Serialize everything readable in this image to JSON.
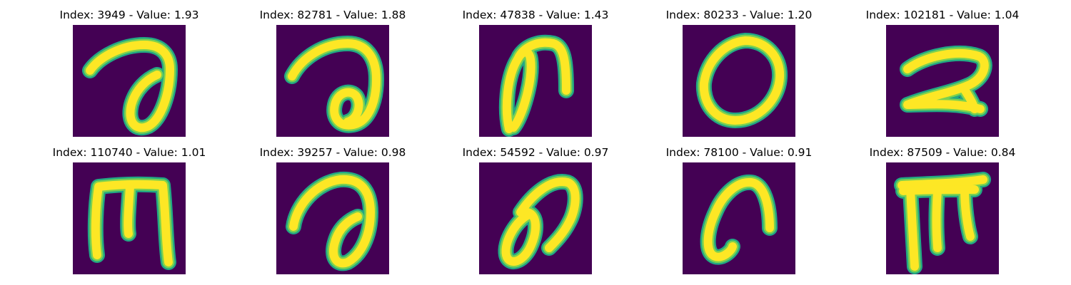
{
  "panels": [
    {
      "title": "Index: 3949 - Value: 1.93",
      "index": 3949,
      "value": 1.93,
      "glyph": "a-loop"
    },
    {
      "title": "Index: 82781 - Value: 1.88",
      "index": 82781,
      "value": 1.88,
      "glyph": "a-curl"
    },
    {
      "title": "Index: 47838 - Value: 1.43",
      "index": 47838,
      "value": 1.43,
      "glyph": "n-loop"
    },
    {
      "title": "Index: 80233 - Value: 1.20",
      "index": 80233,
      "value": 1.2,
      "glyph": "o-ring"
    },
    {
      "title": "Index: 102181 - Value: 1.04",
      "index": 102181,
      "value": 1.04,
      "glyph": "two-shape"
    },
    {
      "title": "Index: 110740 - Value: 1.01",
      "index": 110740,
      "value": 1.01,
      "glyph": "m-shape"
    },
    {
      "title": "Index: 39257 - Value: 0.98",
      "index": 39257,
      "value": 0.98,
      "glyph": "a-loop-bold"
    },
    {
      "title": "Index: 54592 - Value: 0.97",
      "index": 54592,
      "value": 0.97,
      "glyph": "o-swirl"
    },
    {
      "title": "Index: 78100 - Value: 0.91",
      "index": 78100,
      "value": 0.91,
      "glyph": "c-hook"
    },
    {
      "title": "Index: 87509 - Value: 0.84",
      "index": 87509,
      "value": 0.84,
      "glyph": "pi-shape"
    }
  ],
  "colors": {
    "background": "#440154",
    "edge": "#22a884",
    "mid": "#7ad151",
    "stroke": "#fde725"
  }
}
